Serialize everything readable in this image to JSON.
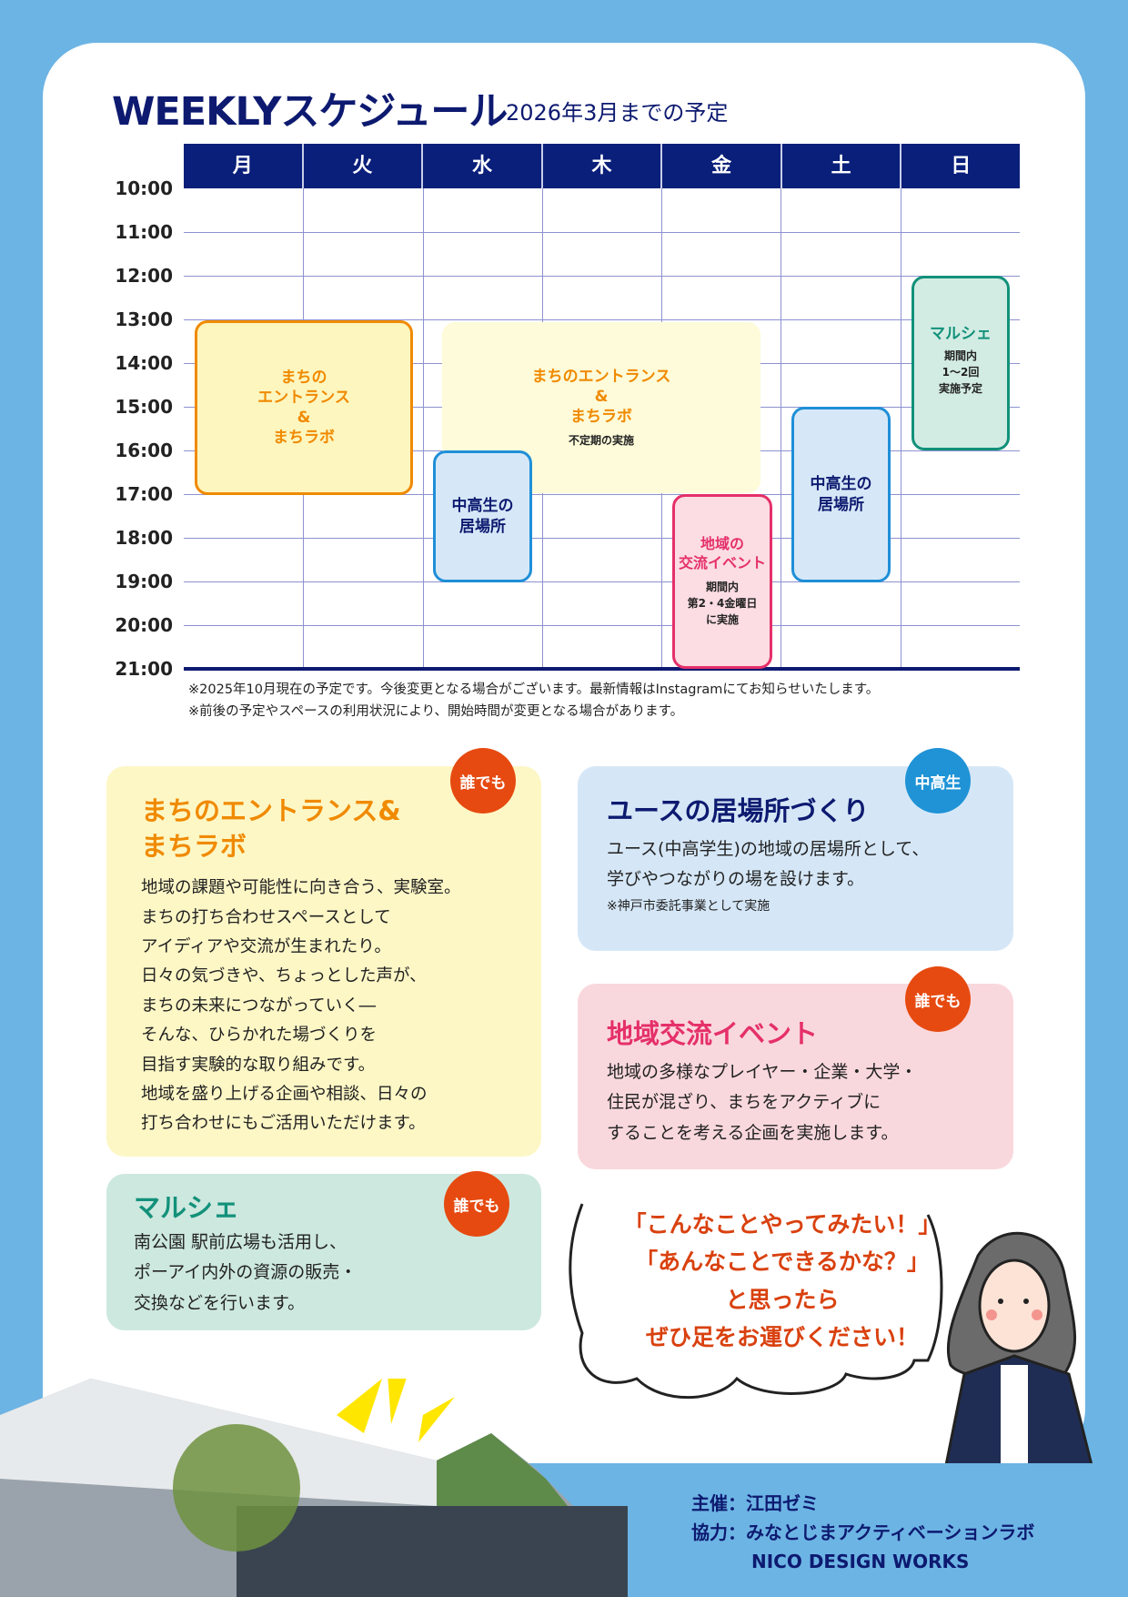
{
  "header": {
    "title": "WEEKLYスケジュール",
    "subtitle": "2026年3月までの予定"
  },
  "schedule": {
    "days": [
      "月",
      "火",
      "水",
      "木",
      "金",
      "土",
      "日"
    ],
    "times": [
      "10:00",
      "11:00",
      "12:00",
      "13:00",
      "14:00",
      "15:00",
      "16:00",
      "17:00",
      "18:00",
      "19:00",
      "20:00",
      "21:00"
    ],
    "events": [
      {
        "title": "まちの\nエントランス\n&\nまちラボ",
        "days": "月",
        "start": "13:00",
        "end": "17:00",
        "color": "#f08a00"
      },
      {
        "title": "まちのエントランス\n&\nまちラボ",
        "note": "不定期の実施",
        "days": "水–金",
        "start": "13:00",
        "end": "17:00",
        "color": "#f08a00"
      },
      {
        "title": "中高生の\n居場所",
        "days": "水",
        "start": "16:00",
        "end": "19:00",
        "color": "#0d1a70"
      },
      {
        "title": "地域の\n交流イベント",
        "note": "期間内\n第2・4金曜日\nに実施",
        "days": "金",
        "start": "17:00",
        "end": "21:00",
        "color": "#e5306a"
      },
      {
        "title": "中高生の\n居場所",
        "days": "土",
        "start": "15:00",
        "end": "19:00",
        "color": "#0d1a70"
      },
      {
        "title": "マルシェ",
        "note": "期間内\n1～2回\n実施予定",
        "days": "日",
        "start": "12:00",
        "end": "16:00",
        "color": "#12917a"
      }
    ],
    "notes": [
      "※2025年10月現在の予定です。今後変更となる場合がございます。最新情報はInstagramにてお知らせいたします。",
      "※前後の予定やスペースの利用状況により、開始時間が変更となる場合があります。"
    ]
  },
  "programs": [
    {
      "title": "まちのエントランス&\nまちラボ",
      "badge": "誰でも",
      "body": "地域の課題や可能性に向き合う、実験室。\nまちの打ち合わせスペースとして\nアイディアや交流が生まれたり。\n日々の気づきや、ちょっとした声が、\nまちの未来につながっていく―\nそんな、ひらかれた場づくりを\n目指す実験的な取り組みです。\n地域を盛り上げる企画や相談、日々の\n打ち合わせにもご活用いただけます。"
    },
    {
      "title": "ユースの居場所づくり",
      "badge": "中高生",
      "body": "ユース(中高学生)の地域の居場所として、\n学びやつながりの場を設けます。",
      "note": "※神戸市委託事業として実施"
    },
    {
      "title": "地域交流イベント",
      "badge": "誰でも",
      "body": "地域の多様なプレイヤー・企業・大学・\n住民が混ざり、まちをアクティブに\nすることを考える企画を実施します。"
    },
    {
      "title": "マルシェ",
      "badge": "誰でも",
      "body": "南公園 駅前広場も活用し、\nポーアイ内外の資源の販売・\n交換などを行います。"
    }
  ],
  "bubble": {
    "lines": [
      "「こんなことやってみたい！」",
      "「あんなことできるかな？」",
      "と思ったら",
      "ぜひ足をお運びください！"
    ]
  },
  "footer": {
    "host": "主催：江田ゼミ",
    "coop": "協力：みなとじまアクティベーションラボ",
    "coop2": "NICO DESIGN WORKS"
  },
  "colors": {
    "navy": "#0d1a70",
    "orange": "#f08a00",
    "pink": "#e5306a",
    "green": "#12917a",
    "badge_red": "#e64a10",
    "badge_blue": "#1f93d6",
    "bg": "#6cb4e4"
  }
}
